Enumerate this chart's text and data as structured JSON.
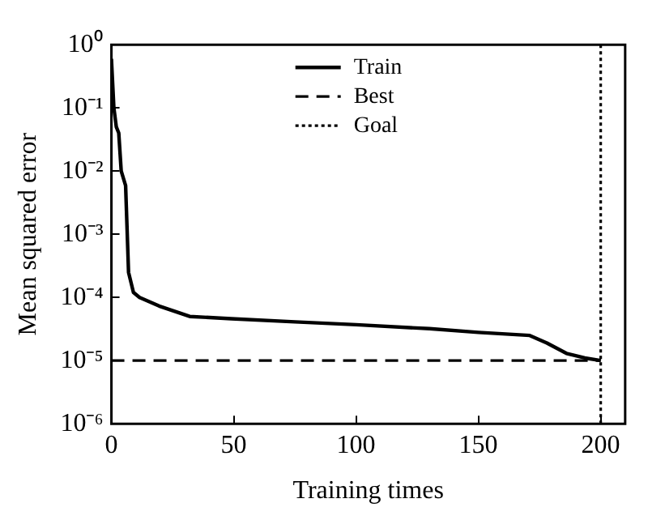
{
  "chart_data": {
    "type": "line",
    "xlabel": "Training times",
    "ylabel": "Mean squared error",
    "log": "y",
    "grid": false,
    "legend": "top",
    "xlim": [
      0,
      210
    ],
    "xticks": [
      0,
      50,
      100,
      150,
      200
    ],
    "ylim": [
      1e-06,
      1
    ],
    "yticks": [
      {
        "value": 1e-06,
        "label": "10⁻⁶"
      },
      {
        "value": 1e-05,
        "label": "10⁻⁵"
      },
      {
        "value": 0.0001,
        "label": "10⁻⁴"
      },
      {
        "value": 0.001,
        "label": "10⁻³"
      },
      {
        "value": 0.01,
        "label": "10⁻²"
      },
      {
        "value": 0.1,
        "label": "10⁻¹"
      },
      {
        "value": 1,
        "label": "10⁰"
      }
    ],
    "series": [
      {
        "name": "Train",
        "color": "#000000",
        "line_style": "solid",
        "x": [
          0,
          1,
          2,
          3,
          4,
          5.8,
          7,
          9,
          11.5,
          19.5,
          32,
          49,
          75,
          100,
          130,
          150,
          171,
          178,
          186,
          193.5,
          200
        ],
        "values": [
          0.6,
          0.1,
          0.05,
          0.04,
          0.01,
          0.0059,
          0.00025,
          0.00012,
          0.0001,
          7.3e-05,
          5e-05,
          4.6e-05,
          4.1e-05,
          3.7e-05,
          3.2e-05,
          2.8e-05,
          2.5e-05,
          1.9e-05,
          1.3e-05,
          1.1e-05,
          1e-05
        ]
      },
      {
        "name": "Best",
        "color": "#000000",
        "line_style": "dashed",
        "x": [
          0,
          200
        ],
        "values": [
          1e-05,
          1e-05
        ]
      },
      {
        "name": "Goal",
        "color": "#000000",
        "line_style": "dotted",
        "x": [
          200,
          200
        ],
        "values": [
          1e-06,
          1
        ]
      }
    ]
  }
}
